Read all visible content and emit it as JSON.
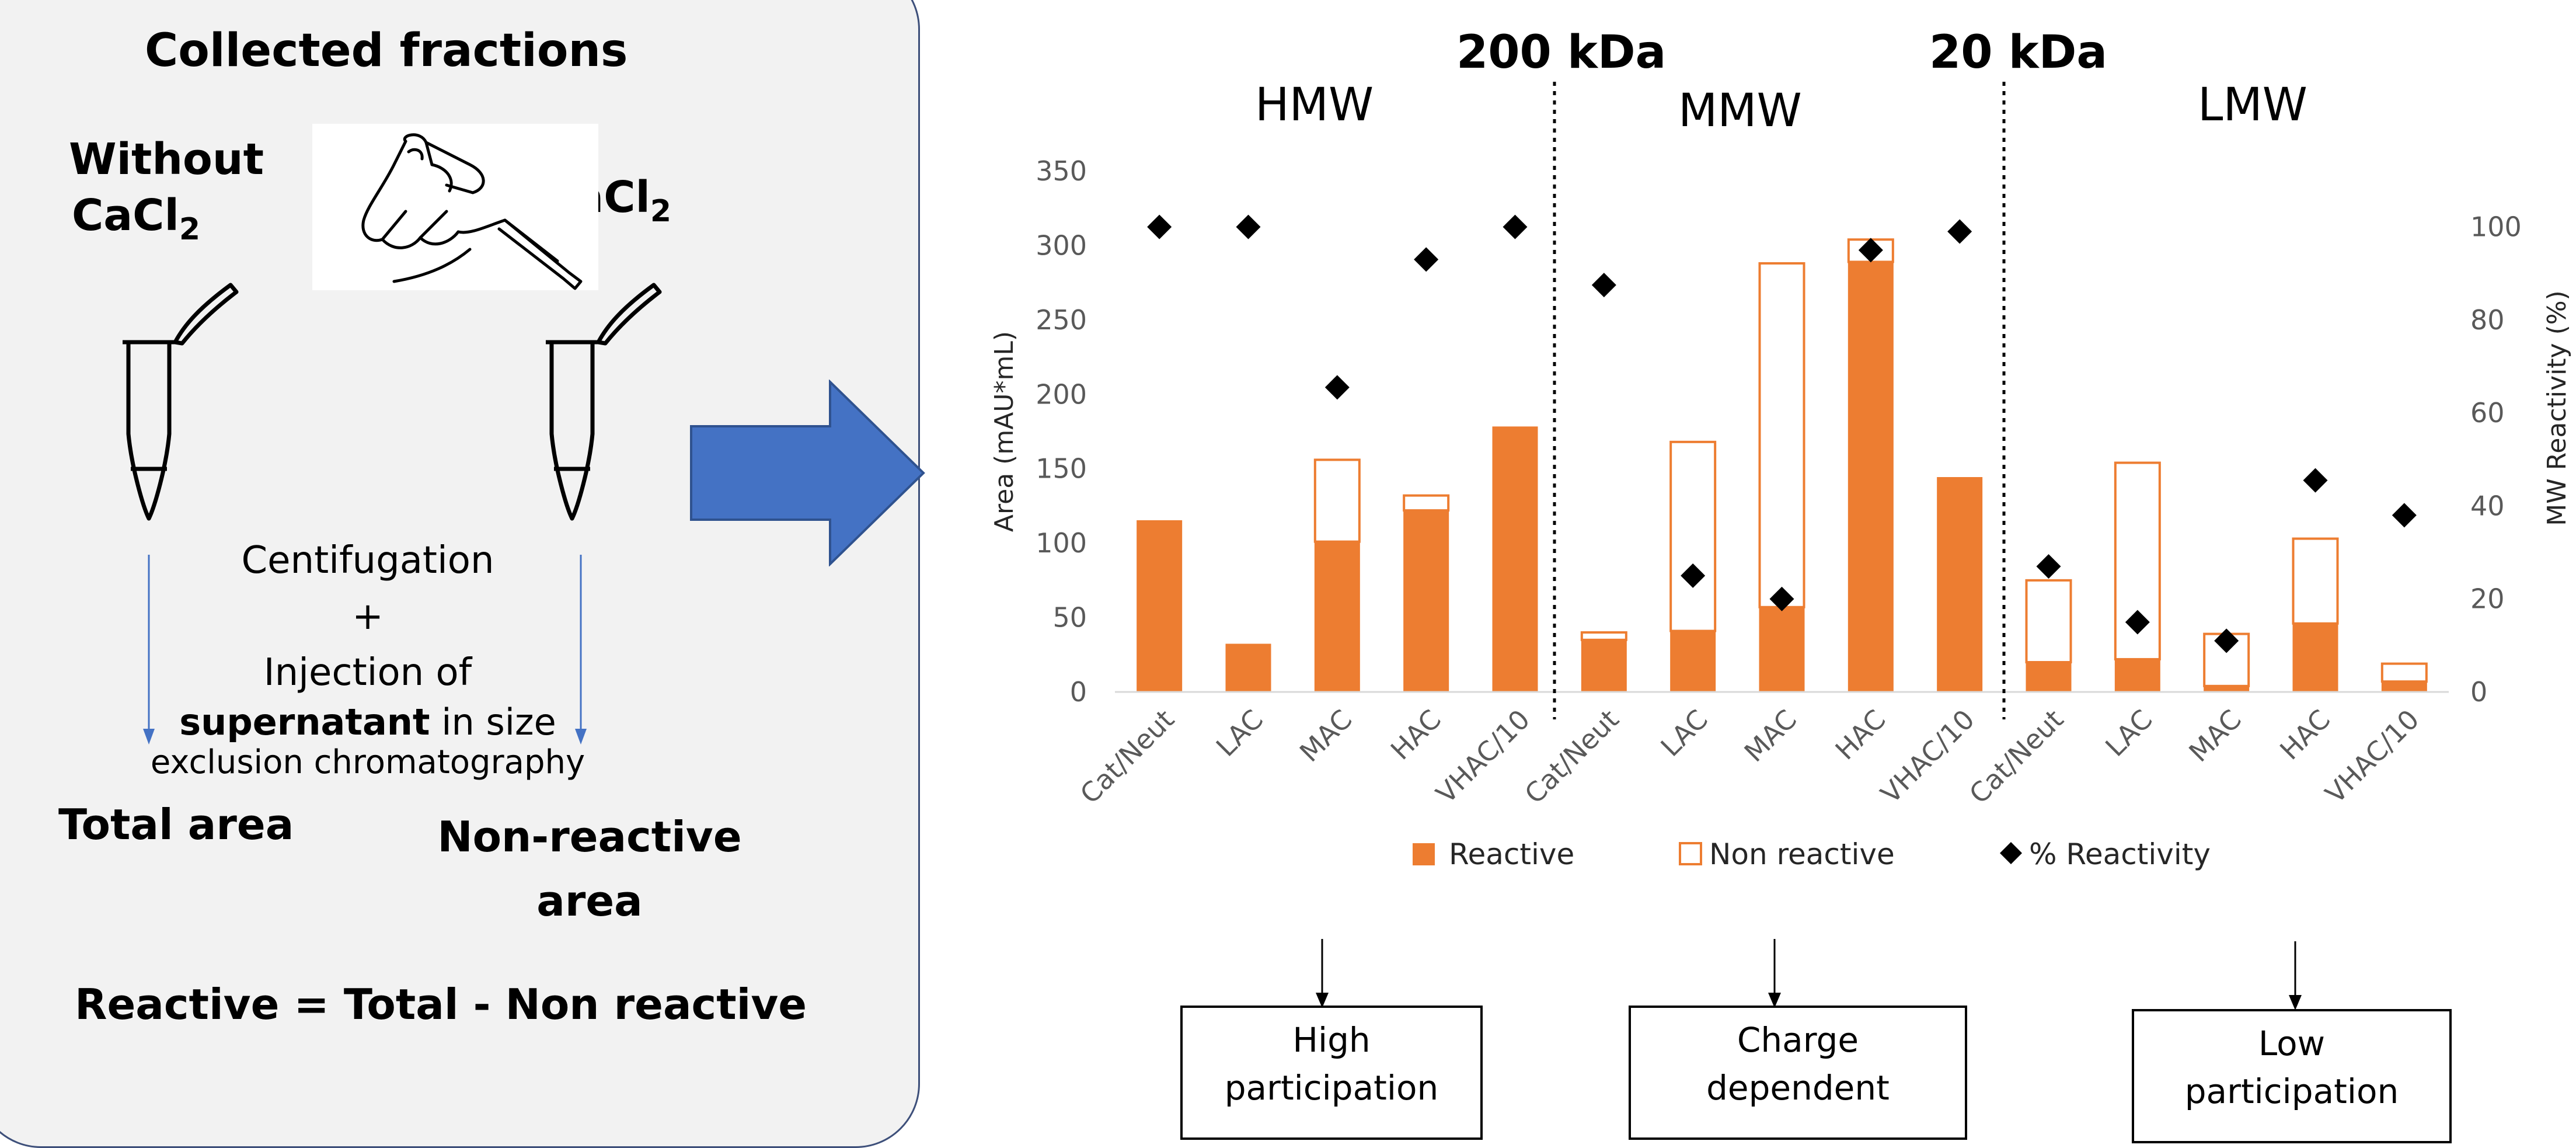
{
  "left_panel": {
    "title": "Collected fractions",
    "without_label_1": "Without",
    "without_label_2": "CaCl",
    "with_label": "CaCl",
    "subscript": "2",
    "centrifugation_1": "Centifugation",
    "centrifugation_2": "+",
    "centrifugation_3": "Injection of",
    "centrifugation_4_bold": "supernatant",
    "centrifugation_4_rest": " in size",
    "centrifugation_5": "exclusion chromatography",
    "total_area": "Total area",
    "nonreactive_area_1": "Non-reactive",
    "nonreactive_area_2": "area",
    "formula": "Reactive = Total - Non reactive"
  },
  "sections": {
    "hmw": "HMW",
    "mmw": "MMW",
    "lmw": "LMW",
    "cut1": "200 kDa",
    "cut2": "20 kDa"
  },
  "outcomes": {
    "high_1": "High",
    "high_2": "participation",
    "charge_1": "Charge",
    "charge_2": "dependent",
    "low_1": "Low",
    "low_2": "participation"
  },
  "colors": {
    "reactive": "#ed7d31",
    "arrow": "#4472c4",
    "arrow_edge": "#2f528f",
    "marker": "#000000"
  },
  "chart_data": {
    "type": "bar",
    "stacked": true,
    "categories": [
      "Cat/Neut",
      "LAC",
      "MAC",
      "HAC",
      "VHAC/10",
      "Cat/Neut",
      "LAC",
      "MAC",
      "HAC",
      "VHAC/10",
      "Cat/Neut",
      "LAC",
      "MAC",
      "HAC",
      "VHAC/10"
    ],
    "series": [
      {
        "name": "Reactive",
        "axis": "left",
        "style": "filled",
        "values": [
          115,
          32,
          101,
          122,
          178,
          35,
          41,
          57,
          289,
          144,
          20,
          22,
          4,
          46,
          7
        ]
      },
      {
        "name": "Non reactive",
        "axis": "left",
        "style": "outline",
        "values": [
          0,
          0,
          55,
          10,
          0,
          5,
          127,
          231,
          15,
          0,
          55,
          132,
          35,
          57,
          12
        ]
      },
      {
        "name": "% Reactivity",
        "axis": "right",
        "style": "diamond",
        "values": [
          100,
          100,
          65.5,
          93,
          100,
          87.5,
          25,
          20,
          95,
          99,
          27,
          15,
          11,
          45.5,
          38
        ]
      }
    ],
    "ylabel": "Area (mAU*mL)",
    "y2label": "MW Reactivity (%)",
    "ylim": [
      0,
      350
    ],
    "y2lim": [
      0,
      112
    ],
    "yticks": [
      0,
      50,
      100,
      150,
      200,
      250,
      300,
      350
    ],
    "y2ticks": [
      0,
      20,
      40,
      60,
      80,
      100
    ],
    "legend_position": "bottom",
    "grid": false
  }
}
